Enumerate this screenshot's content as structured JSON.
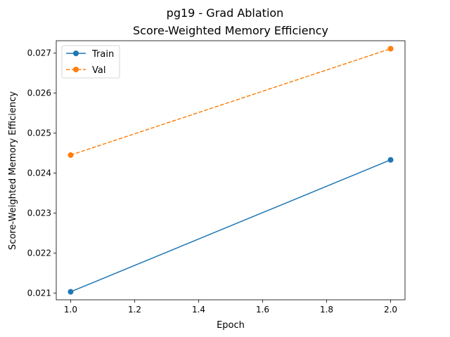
{
  "chart_data": {
    "type": "line",
    "suptitle": "pg19 - Grad Ablation",
    "title": "Score-Weighted Memory Efficiency",
    "xlabel": "Epoch",
    "ylabel": "Score-Weighted Memory Efficiency",
    "xlim": [
      0.955,
      2.045
    ],
    "ylim": [
      0.02083,
      0.02731
    ],
    "xticks": [
      1.0,
      1.2,
      1.4,
      1.6,
      1.8,
      2.0
    ],
    "xtick_labels": [
      "1.0",
      "1.2",
      "1.4",
      "1.6",
      "1.8",
      "2.0"
    ],
    "yticks": [
      0.021,
      0.022,
      0.023,
      0.024,
      0.025,
      0.026,
      0.027
    ],
    "ytick_labels": [
      "0.021",
      "0.022",
      "0.023",
      "0.024",
      "0.025",
      "0.026",
      "0.027"
    ],
    "grid": false,
    "legend_position": "top-left",
    "series": [
      {
        "name": "Train",
        "x": [
          1.0,
          2.0
        ],
        "y": [
          0.02103,
          0.02433
        ],
        "color": "#1f77b4",
        "linestyle": "solid",
        "marker": "circle"
      },
      {
        "name": "Val",
        "x": [
          1.0,
          2.0
        ],
        "y": [
          0.02445,
          0.02711
        ],
        "color": "#ff7f0e",
        "linestyle": "dashed",
        "marker": "circle"
      }
    ]
  }
}
